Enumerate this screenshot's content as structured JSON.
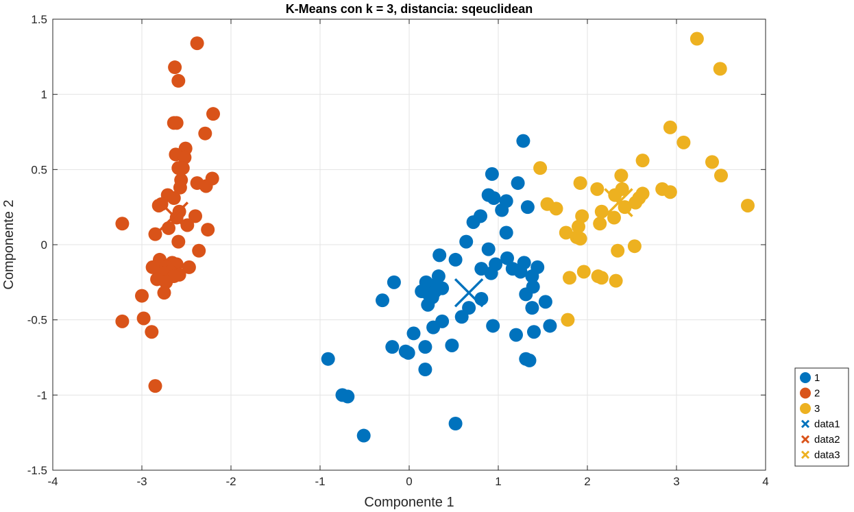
{
  "chart_data": {
    "type": "scatter",
    "title": "K-Means con k = 3, distancia: sqeuclidean",
    "xlabel": "Componente 1",
    "ylabel": "Componente 2",
    "xlim": [
      -4,
      4
    ],
    "ylim": [
      -1.5,
      1.5
    ],
    "xticks": [
      "-4",
      "-3",
      "-2",
      "-1",
      "0",
      "1",
      "2",
      "3",
      "4"
    ],
    "yticks": [
      "-1.5",
      "-1",
      "-0.5",
      "0",
      "0.5",
      "1",
      "1.5"
    ],
    "grid": true,
    "legend_position": "outside-bottom-right",
    "series": [
      {
        "name": "1",
        "color": "#0072BD",
        "marker": "filled-circle",
        "points": [
          [
            1.28,
            0.69
          ],
          [
            0.93,
            0.47
          ],
          [
            1.22,
            0.41
          ],
          [
            0.89,
            0.33
          ],
          [
            0.95,
            0.31
          ],
          [
            1.09,
            0.29
          ],
          [
            1.33,
            0.25
          ],
          [
            1.04,
            0.23
          ],
          [
            0.8,
            0.19
          ],
          [
            0.72,
            0.15
          ],
          [
            1.09,
            0.08
          ],
          [
            0.64,
            0.02
          ],
          [
            0.89,
            -0.03
          ],
          [
            1.1,
            -0.09
          ],
          [
            0.34,
            -0.07
          ],
          [
            0.52,
            -0.1
          ],
          [
            1.29,
            -0.12
          ],
          [
            0.97,
            -0.13
          ],
          [
            1.44,
            -0.15
          ],
          [
            1.16,
            -0.16
          ],
          [
            0.81,
            -0.16
          ],
          [
            1.25,
            -0.18
          ],
          [
            0.92,
            -0.19
          ],
          [
            1.38,
            -0.21
          ],
          [
            0.33,
            -0.21
          ],
          [
            0.19,
            -0.25
          ],
          [
            -0.17,
            -0.25
          ],
          [
            0.27,
            -0.27
          ],
          [
            1.39,
            -0.28
          ],
          [
            0.14,
            -0.31
          ],
          [
            0.29,
            -0.31
          ],
          [
            0.37,
            -0.29
          ],
          [
            0.22,
            -0.33
          ],
          [
            1.31,
            -0.33
          ],
          [
            0.81,
            -0.36
          ],
          [
            -0.3,
            -0.37
          ],
          [
            1.53,
            -0.38
          ],
          [
            0.26,
            -0.35
          ],
          [
            0.21,
            -0.4
          ],
          [
            1.38,
            -0.42
          ],
          [
            0.67,
            -0.42
          ],
          [
            0.59,
            -0.48
          ],
          [
            0.37,
            -0.51
          ],
          [
            0.94,
            -0.54
          ],
          [
            1.58,
            -0.54
          ],
          [
            0.27,
            -0.55
          ],
          [
            1.4,
            -0.58
          ],
          [
            0.05,
            -0.59
          ],
          [
            1.2,
            -0.6
          ],
          [
            0.48,
            -0.67
          ],
          [
            -0.19,
            -0.68
          ],
          [
            0.18,
            -0.68
          ],
          [
            -0.04,
            -0.71
          ],
          [
            -0.01,
            -0.72
          ],
          [
            1.31,
            -0.76
          ],
          [
            -0.91,
            -0.76
          ],
          [
            1.35,
            -0.77
          ],
          [
            0.18,
            -0.83
          ],
          [
            -0.75,
            -1.0
          ],
          [
            -0.69,
            -1.01
          ],
          [
            -0.51,
            -1.27
          ],
          [
            0.52,
            -1.19
          ]
        ]
      },
      {
        "name": "2",
        "color": "#D95319",
        "marker": "filled-circle",
        "points": [
          [
            -2.38,
            1.34
          ],
          [
            -2.63,
            1.18
          ],
          [
            -2.59,
            1.09
          ],
          [
            -2.2,
            0.87
          ],
          [
            -2.64,
            0.81
          ],
          [
            -2.61,
            0.81
          ],
          [
            -2.29,
            0.74
          ],
          [
            -2.51,
            0.64
          ],
          [
            -2.62,
            0.6
          ],
          [
            -2.52,
            0.58
          ],
          [
            -2.59,
            0.51
          ],
          [
            -2.54,
            0.51
          ],
          [
            -2.21,
            0.44
          ],
          [
            -2.56,
            0.43
          ],
          [
            -2.38,
            0.41
          ],
          [
            -2.28,
            0.39
          ],
          [
            -2.57,
            0.38
          ],
          [
            -2.71,
            0.33
          ],
          [
            -2.64,
            0.31
          ],
          [
            -2.78,
            0.27
          ],
          [
            -2.81,
            0.26
          ],
          [
            -2.58,
            0.22
          ],
          [
            -2.4,
            0.19
          ],
          [
            -2.61,
            0.18
          ],
          [
            -2.49,
            0.13
          ],
          [
            -2.7,
            0.11
          ],
          [
            -2.26,
            0.1
          ],
          [
            -2.85,
            0.07
          ],
          [
            -3.22,
            0.14
          ],
          [
            -2.59,
            0.02
          ],
          [
            -2.36,
            -0.04
          ],
          [
            -2.8,
            -0.1
          ],
          [
            -2.66,
            -0.12
          ],
          [
            -2.61,
            -0.13
          ],
          [
            -2.88,
            -0.15
          ],
          [
            -2.73,
            -0.15
          ],
          [
            -2.47,
            -0.15
          ],
          [
            -2.68,
            -0.18
          ],
          [
            -2.76,
            -0.19
          ],
          [
            -2.58,
            -0.2
          ],
          [
            -2.64,
            -0.21
          ],
          [
            -2.83,
            -0.23
          ],
          [
            -2.73,
            -0.25
          ],
          [
            -2.75,
            -0.32
          ],
          [
            -3.0,
            -0.34
          ],
          [
            -2.98,
            -0.49
          ],
          [
            -3.22,
            -0.51
          ],
          [
            -2.89,
            -0.58
          ],
          [
            -2.85,
            -0.94
          ]
        ]
      },
      {
        "name": "3",
        "color": "#EDB120",
        "marker": "filled-circle",
        "points": [
          [
            3.23,
            1.37
          ],
          [
            3.49,
            1.17
          ],
          [
            2.93,
            0.78
          ],
          [
            3.08,
            0.68
          ],
          [
            2.62,
            0.56
          ],
          [
            3.4,
            0.55
          ],
          [
            1.47,
            0.51
          ],
          [
            3.5,
            0.46
          ],
          [
            2.38,
            0.46
          ],
          [
            1.92,
            0.41
          ],
          [
            2.11,
            0.37
          ],
          [
            2.39,
            0.37
          ],
          [
            2.84,
            0.37
          ],
          [
            2.93,
            0.35
          ],
          [
            2.62,
            0.34
          ],
          [
            2.31,
            0.33
          ],
          [
            2.58,
            0.31
          ],
          [
            2.54,
            0.28
          ],
          [
            1.55,
            0.27
          ],
          [
            1.65,
            0.24
          ],
          [
            3.8,
            0.26
          ],
          [
            2.16,
            0.22
          ],
          [
            2.42,
            0.25
          ],
          [
            1.94,
            0.19
          ],
          [
            2.3,
            0.18
          ],
          [
            2.14,
            0.14
          ],
          [
            1.9,
            0.12
          ],
          [
            1.76,
            0.08
          ],
          [
            1.88,
            0.05
          ],
          [
            1.92,
            0.04
          ],
          [
            2.53,
            -0.01
          ],
          [
            2.34,
            -0.04
          ],
          [
            1.96,
            -0.18
          ],
          [
            2.12,
            -0.21
          ],
          [
            1.8,
            -0.22
          ],
          [
            2.16,
            -0.22
          ],
          [
            2.32,
            -0.24
          ],
          [
            1.78,
            -0.5
          ]
        ]
      }
    ],
    "centroids": [
      {
        "name": "data1",
        "color": "#0072BD",
        "marker": "x",
        "x": 0.67,
        "y": -0.32
      },
      {
        "name": "data2",
        "color": "#D95319",
        "marker": "x",
        "x": -2.64,
        "y": 0.19
      },
      {
        "name": "data3",
        "color": "#EDB120",
        "marker": "x",
        "x": 2.35,
        "y": 0.28
      }
    ],
    "legend": [
      {
        "label": "1",
        "color": "#0072BD",
        "marker": "circle"
      },
      {
        "label": "2",
        "color": "#D95319",
        "marker": "circle"
      },
      {
        "label": "3",
        "color": "#EDB120",
        "marker": "circle"
      },
      {
        "label": "data1",
        "color": "#0072BD",
        "marker": "x"
      },
      {
        "label": "data2",
        "color": "#D95319",
        "marker": "x"
      },
      {
        "label": "data3",
        "color": "#EDB120",
        "marker": "x"
      }
    ]
  }
}
